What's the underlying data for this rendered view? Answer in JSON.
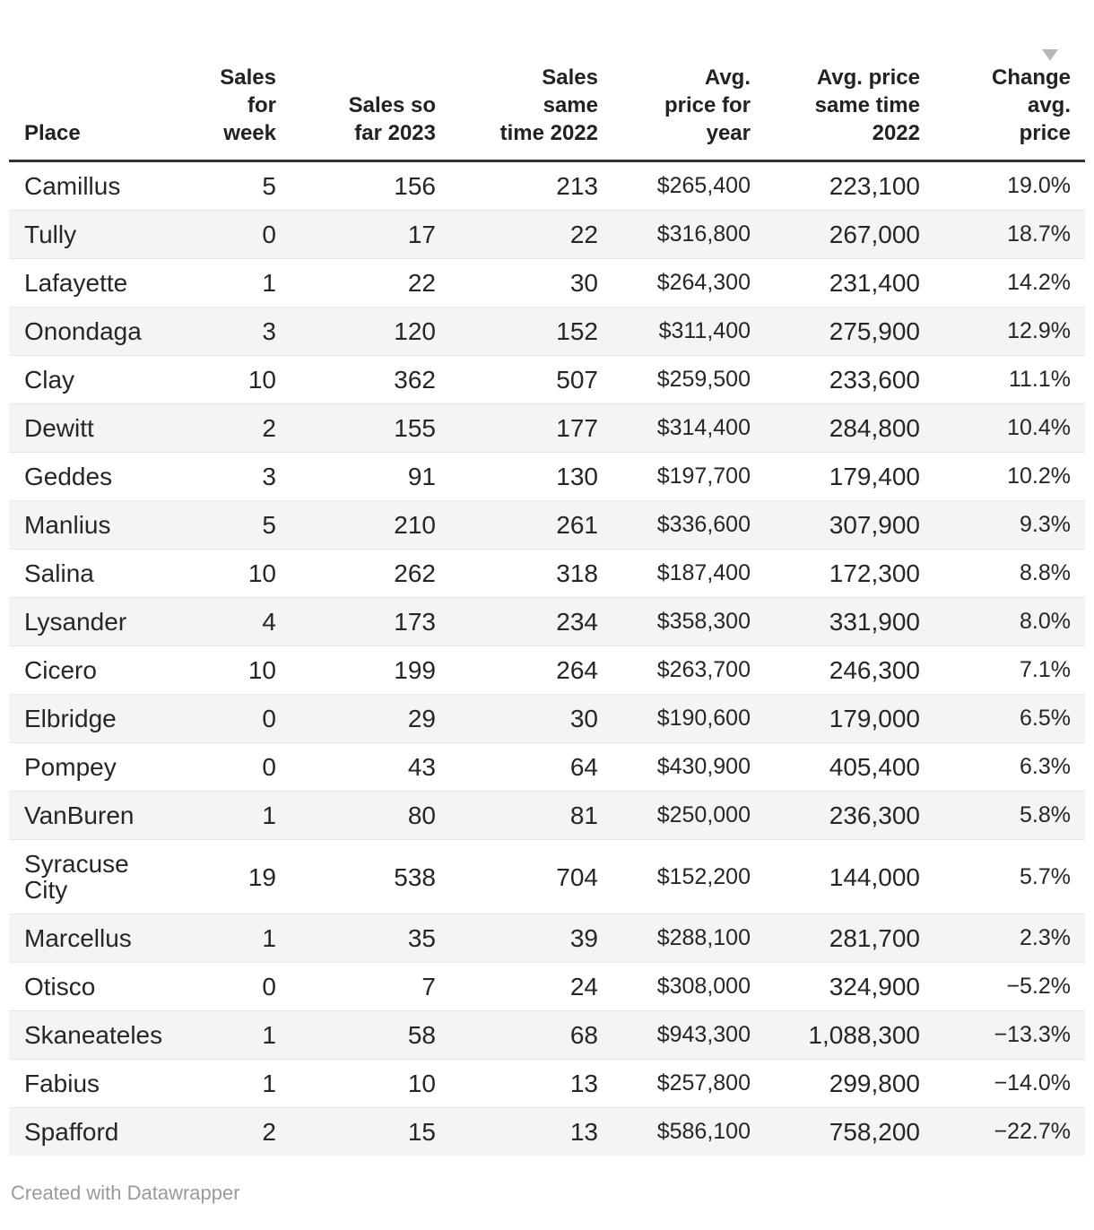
{
  "chart_data": {
    "type": "table",
    "sort": {
      "column": "Change avg. price",
      "direction": "descending"
    },
    "columns": [
      {
        "label": "Place"
      },
      {
        "label": "Sales for week"
      },
      {
        "label": "Sales so far 2023"
      },
      {
        "label": "Sales same time 2022"
      },
      {
        "label": "Avg. price for year"
      },
      {
        "label": "Avg. price same time 2022"
      },
      {
        "label": "Change avg. price"
      }
    ],
    "rows": [
      [
        "Camillus",
        "5",
        "156",
        "213",
        "$265,400",
        "223,100",
        "19.0%"
      ],
      [
        "Tully",
        "0",
        "17",
        "22",
        "$316,800",
        "267,000",
        "18.7%"
      ],
      [
        "Lafayette",
        "1",
        "22",
        "30",
        "$264,300",
        "231,400",
        "14.2%"
      ],
      [
        "Onondaga",
        "3",
        "120",
        "152",
        "$311,400",
        "275,900",
        "12.9%"
      ],
      [
        "Clay",
        "10",
        "362",
        "507",
        "$259,500",
        "233,600",
        "11.1%"
      ],
      [
        "Dewitt",
        "2",
        "155",
        "177",
        "$314,400",
        "284,800",
        "10.4%"
      ],
      [
        "Geddes",
        "3",
        "91",
        "130",
        "$197,700",
        "179,400",
        "10.2%"
      ],
      [
        "Manlius",
        "5",
        "210",
        "261",
        "$336,600",
        "307,900",
        "9.3%"
      ],
      [
        "Salina",
        "10",
        "262",
        "318",
        "$187,400",
        "172,300",
        "8.8%"
      ],
      [
        "Lysander",
        "4",
        "173",
        "234",
        "$358,300",
        "331,900",
        "8.0%"
      ],
      [
        "Cicero",
        "10",
        "199",
        "264",
        "$263,700",
        "246,300",
        "7.1%"
      ],
      [
        "Elbridge",
        "0",
        "29",
        "30",
        "$190,600",
        "179,000",
        "6.5%"
      ],
      [
        "Pompey",
        "0",
        "43",
        "64",
        "$430,900",
        "405,400",
        "6.3%"
      ],
      [
        "VanBuren",
        "1",
        "80",
        "81",
        "$250,000",
        "236,300",
        "5.8%"
      ],
      [
        "Syracuse City",
        "19",
        "538",
        "704",
        "$152,200",
        "144,000",
        "5.7%"
      ],
      [
        "Marcellus",
        "1",
        "35",
        "39",
        "$288,100",
        "281,700",
        "2.3%"
      ],
      [
        "Otisco",
        "0",
        "7",
        "24",
        "$308,000",
        "324,900",
        "−5.2%"
      ],
      [
        "Skaneateles",
        "1",
        "58",
        "68",
        "$943,300",
        "1,088,300",
        "−13.3%"
      ],
      [
        "Fabius",
        "1",
        "10",
        "13",
        "$257,800",
        "299,800",
        "−14.0%"
      ],
      [
        "Spafford",
        "2",
        "15",
        "13",
        "$586,100",
        "758,200",
        "−22.7%"
      ]
    ]
  },
  "footer": {
    "credit": "Created with Datawrapper"
  },
  "colors": {
    "stripe": "#f4f4f4",
    "header_border": "#333333",
    "row_separator": "#e8e8e8",
    "sort_arrow": "#b8b8b8",
    "body_text": "#262626",
    "footer_text": "#9a9a9a"
  }
}
